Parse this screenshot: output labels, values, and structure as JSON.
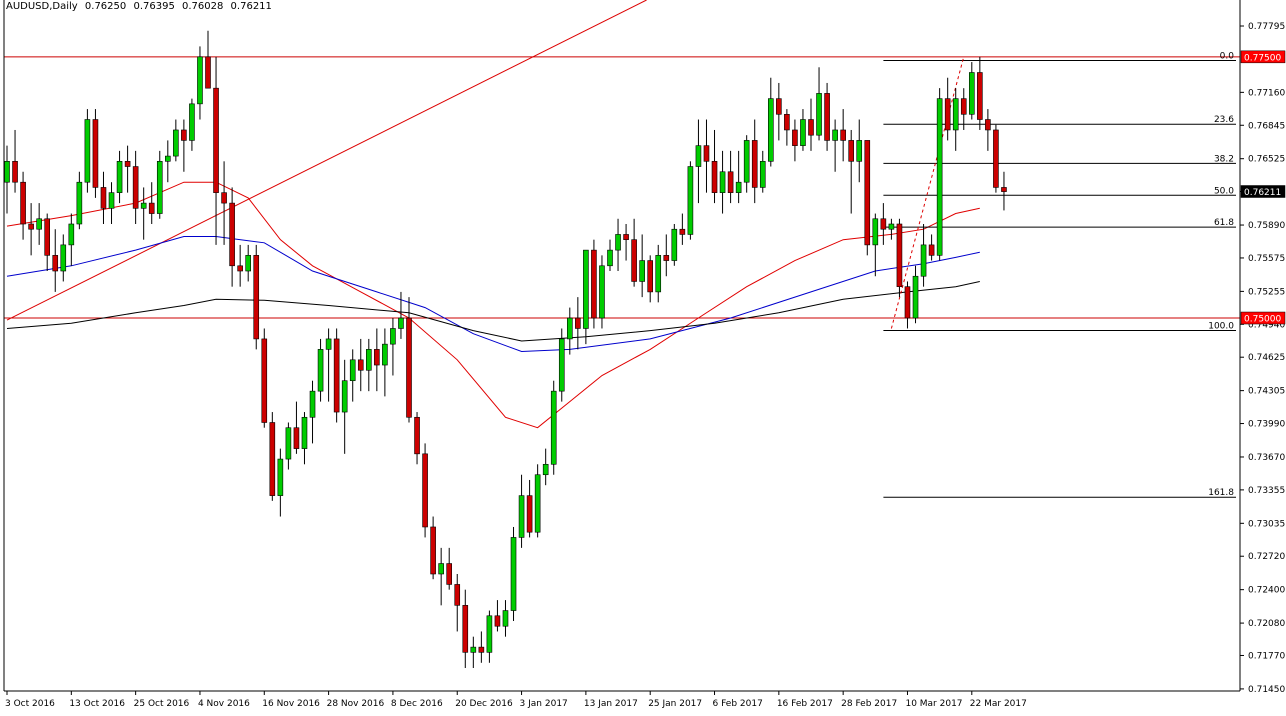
{
  "header": {
    "symbol": "AUDUSD,Daily",
    "open": "0.76250",
    "high": "0.76395",
    "low": "0.76028",
    "close": "0.76211"
  },
  "colors": {
    "bull": "#00cc00",
    "bear": "#cc0000",
    "ma_fast": "#e00000",
    "ma_mid": "#0000cc",
    "ma_slow": "#000000",
    "hline": "#cc0000",
    "trendline": "#dd0000",
    "price_tag_bg": "#ff0000"
  },
  "chart_data": {
    "type": "candlestick",
    "symbol": "AUDUSD",
    "timeframe": "Daily",
    "ylim": [
      0.7143,
      0.7791
    ],
    "y_ticks": [
      "0.77795",
      "0.77160",
      "0.76845",
      "0.76525",
      "0.76211",
      "0.75890",
      "0.75575",
      "0.75255",
      "0.74940",
      "0.74625",
      "0.74305",
      "0.73990",
      "0.73670",
      "0.73355",
      "0.73035",
      "0.72720",
      "0.72400",
      "0.72080",
      "0.71770",
      "0.71450"
    ],
    "x_labels": [
      {
        "i": 0,
        "label": "3 Oct 2016"
      },
      {
        "i": 8,
        "label": "13 Oct 2016"
      },
      {
        "i": 16,
        "label": "25 Oct 2016"
      },
      {
        "i": 24,
        "label": "4 Nov 2016"
      },
      {
        "i": 32,
        "label": "16 Nov 2016"
      },
      {
        "i": 40,
        "label": "28 Nov 2016"
      },
      {
        "i": 48,
        "label": "8 Dec 2016"
      },
      {
        "i": 56,
        "label": "20 Dec 2016"
      },
      {
        "i": 64,
        "label": "3 Jan 2017"
      },
      {
        "i": 72,
        "label": "13 Jan 2017"
      },
      {
        "i": 80,
        "label": "25 Jan 2017"
      },
      {
        "i": 88,
        "label": "6 Feb 2017"
      },
      {
        "i": 96,
        "label": "16 Feb 2017"
      },
      {
        "i": 104,
        "label": "28 Feb 2017"
      },
      {
        "i": 112,
        "label": "10 Mar 2017"
      },
      {
        "i": 120,
        "label": "22 Mar 2017"
      }
    ],
    "candles": [
      [
        0.763,
        0.7665,
        0.76,
        0.765
      ],
      [
        0.765,
        0.768,
        0.762,
        0.763
      ],
      [
        0.763,
        0.764,
        0.7575,
        0.759
      ],
      [
        0.759,
        0.761,
        0.756,
        0.7585
      ],
      [
        0.7585,
        0.761,
        0.757,
        0.7595
      ],
      [
        0.7595,
        0.76,
        0.7545,
        0.756
      ],
      [
        0.756,
        0.7585,
        0.7525,
        0.7545
      ],
      [
        0.7545,
        0.758,
        0.7535,
        0.757
      ],
      [
        0.757,
        0.76,
        0.755,
        0.759
      ],
      [
        0.759,
        0.764,
        0.7585,
        0.763
      ],
      [
        0.763,
        0.77,
        0.762,
        0.769
      ],
      [
        0.769,
        0.77,
        0.7615,
        0.7625
      ],
      [
        0.7625,
        0.764,
        0.759,
        0.7605
      ],
      [
        0.7605,
        0.763,
        0.759,
        0.762
      ],
      [
        0.762,
        0.766,
        0.761,
        0.765
      ],
      [
        0.765,
        0.7665,
        0.762,
        0.7645
      ],
      [
        0.7645,
        0.766,
        0.759,
        0.7605
      ],
      [
        0.7605,
        0.7625,
        0.7575,
        0.761
      ],
      [
        0.761,
        0.763,
        0.759,
        0.76
      ],
      [
        0.76,
        0.766,
        0.7595,
        0.765
      ],
      [
        0.765,
        0.767,
        0.763,
        0.7655
      ],
      [
        0.7655,
        0.769,
        0.765,
        0.768
      ],
      [
        0.768,
        0.769,
        0.764,
        0.767
      ],
      [
        0.767,
        0.771,
        0.766,
        0.7705
      ],
      [
        0.7705,
        0.776,
        0.769,
        0.775
      ],
      [
        0.775,
        0.7775,
        0.772,
        0.772
      ],
      [
        0.772,
        0.775,
        0.757,
        0.762
      ],
      [
        0.762,
        0.765,
        0.757,
        0.761
      ],
      [
        0.761,
        0.7625,
        0.753,
        0.755
      ],
      [
        0.755,
        0.757,
        0.753,
        0.7545
      ],
      [
        0.7545,
        0.757,
        0.7535,
        0.756
      ],
      [
        0.756,
        0.757,
        0.747,
        0.748
      ],
      [
        0.748,
        0.749,
        0.7395,
        0.74
      ],
      [
        0.74,
        0.741,
        0.7325,
        0.733
      ],
      [
        0.733,
        0.7375,
        0.731,
        0.7365
      ],
      [
        0.7365,
        0.74,
        0.7355,
        0.7395
      ],
      [
        0.7395,
        0.742,
        0.737,
        0.7375
      ],
      [
        0.7375,
        0.741,
        0.736,
        0.7405
      ],
      [
        0.7405,
        0.744,
        0.738,
        0.743
      ],
      [
        0.743,
        0.748,
        0.742,
        0.747
      ],
      [
        0.747,
        0.749,
        0.742,
        0.748
      ],
      [
        0.748,
        0.749,
        0.74,
        0.741
      ],
      [
        0.741,
        0.746,
        0.737,
        0.744
      ],
      [
        0.744,
        0.747,
        0.742,
        0.746
      ],
      [
        0.746,
        0.748,
        0.743,
        0.745
      ],
      [
        0.745,
        0.748,
        0.743,
        0.747
      ],
      [
        0.747,
        0.749,
        0.743,
        0.7455
      ],
      [
        0.7455,
        0.749,
        0.7425,
        0.7475
      ],
      [
        0.7475,
        0.75,
        0.7445,
        0.749
      ],
      [
        0.749,
        0.7525,
        0.748,
        0.75
      ],
      [
        0.75,
        0.752,
        0.74,
        0.7405
      ],
      [
        0.7405,
        0.741,
        0.736,
        0.737
      ],
      [
        0.737,
        0.738,
        0.729,
        0.73
      ],
      [
        0.73,
        0.731,
        0.725,
        0.7255
      ],
      [
        0.7255,
        0.728,
        0.7225,
        0.7265
      ],
      [
        0.7265,
        0.728,
        0.724,
        0.7245
      ],
      [
        0.7245,
        0.7255,
        0.72,
        0.7225
      ],
      [
        0.7225,
        0.724,
        0.7165,
        0.718
      ],
      [
        0.718,
        0.7195,
        0.7165,
        0.7185
      ],
      [
        0.7185,
        0.72,
        0.717,
        0.718
      ],
      [
        0.718,
        0.722,
        0.717,
        0.7215
      ],
      [
        0.7215,
        0.723,
        0.72,
        0.7205
      ],
      [
        0.7205,
        0.723,
        0.7195,
        0.722
      ],
      [
        0.722,
        0.73,
        0.721,
        0.729
      ],
      [
        0.729,
        0.735,
        0.728,
        0.733
      ],
      [
        0.733,
        0.7345,
        0.729,
        0.7295
      ],
      [
        0.7295,
        0.736,
        0.729,
        0.735
      ],
      [
        0.735,
        0.7375,
        0.734,
        0.736
      ],
      [
        0.736,
        0.744,
        0.735,
        0.743
      ],
      [
        0.743,
        0.749,
        0.742,
        0.748
      ],
      [
        0.748,
        0.751,
        0.7465,
        0.75
      ],
      [
        0.75,
        0.752,
        0.747,
        0.749
      ],
      [
        0.749,
        0.756,
        0.7475,
        0.7565
      ],
      [
        0.7565,
        0.7575,
        0.749,
        0.75
      ],
      [
        0.75,
        0.756,
        0.749,
        0.755
      ],
      [
        0.755,
        0.7575,
        0.7545,
        0.7565
      ],
      [
        0.7565,
        0.7595,
        0.7545,
        0.758
      ],
      [
        0.758,
        0.759,
        0.7555,
        0.7575
      ],
      [
        0.7575,
        0.7595,
        0.753,
        0.7535
      ],
      [
        0.7535,
        0.758,
        0.752,
        0.7555
      ],
      [
        0.7555,
        0.756,
        0.7515,
        0.7525
      ],
      [
        0.7525,
        0.757,
        0.7515,
        0.756
      ],
      [
        0.756,
        0.758,
        0.754,
        0.7555
      ],
      [
        0.7555,
        0.759,
        0.755,
        0.7585
      ],
      [
        0.7585,
        0.76,
        0.757,
        0.758
      ],
      [
        0.758,
        0.765,
        0.7575,
        0.7645
      ],
      [
        0.7645,
        0.769,
        0.761,
        0.7665
      ],
      [
        0.7665,
        0.769,
        0.762,
        0.765
      ],
      [
        0.765,
        0.768,
        0.761,
        0.762
      ],
      [
        0.762,
        0.766,
        0.76,
        0.764
      ],
      [
        0.764,
        0.766,
        0.761,
        0.762
      ],
      [
        0.762,
        0.766,
        0.761,
        0.763
      ],
      [
        0.763,
        0.7675,
        0.762,
        0.767
      ],
      [
        0.767,
        0.769,
        0.761,
        0.7625
      ],
      [
        0.7625,
        0.766,
        0.762,
        0.765
      ],
      [
        0.765,
        0.773,
        0.7645,
        0.771
      ],
      [
        0.771,
        0.7725,
        0.767,
        0.7695
      ],
      [
        0.7695,
        0.77,
        0.7665,
        0.768
      ],
      [
        0.768,
        0.769,
        0.765,
        0.7665
      ],
      [
        0.7665,
        0.77,
        0.766,
        0.769
      ],
      [
        0.769,
        0.771,
        0.766,
        0.7675
      ],
      [
        0.7675,
        0.774,
        0.767,
        0.7715
      ],
      [
        0.7715,
        0.7725,
        0.766,
        0.767
      ],
      [
        0.767,
        0.769,
        0.764,
        0.768
      ],
      [
        0.768,
        0.77,
        0.765,
        0.767
      ],
      [
        0.767,
        0.768,
        0.76,
        0.765
      ],
      [
        0.765,
        0.769,
        0.763,
        0.767
      ],
      [
        0.767,
        0.767,
        0.756,
        0.757
      ],
      [
        0.757,
        0.76,
        0.754,
        0.7595
      ],
      [
        0.7595,
        0.761,
        0.757,
        0.7585
      ],
      [
        0.7585,
        0.7595,
        0.7575,
        0.759
      ],
      [
        0.759,
        0.7595,
        0.752,
        0.753
      ],
      [
        0.753,
        0.7535,
        0.749,
        0.75
      ],
      [
        0.75,
        0.755,
        0.7495,
        0.754
      ],
      [
        0.754,
        0.759,
        0.753,
        0.757
      ],
      [
        0.757,
        0.758,
        0.7555,
        0.756
      ],
      [
        0.756,
        0.772,
        0.7555,
        0.771
      ],
      [
        0.771,
        0.773,
        0.767,
        0.768
      ],
      [
        0.768,
        0.772,
        0.766,
        0.771
      ],
      [
        0.771,
        0.772,
        0.768,
        0.7695
      ],
      [
        0.7695,
        0.7745,
        0.769,
        0.7735
      ],
      [
        0.7735,
        0.775,
        0.768,
        0.769
      ],
      [
        0.769,
        0.77,
        0.766,
        0.768
      ],
      [
        0.768,
        0.7685,
        0.762,
        0.7625
      ],
      [
        0.7625,
        0.764,
        0.7603,
        0.7621
      ]
    ],
    "ma_series": [
      {
        "color": "ma_fast",
        "points": [
          [
            0,
            0.7588
          ],
          [
            8,
            0.7598
          ],
          [
            16,
            0.761
          ],
          [
            22,
            0.763
          ],
          [
            26,
            0.763
          ],
          [
            30,
            0.7615
          ],
          [
            34,
            0.7575
          ],
          [
            38,
            0.755
          ],
          [
            44,
            0.7525
          ],
          [
            50,
            0.75
          ],
          [
            56,
            0.746
          ],
          [
            62,
            0.7405
          ],
          [
            66,
            0.7395
          ],
          [
            70,
            0.742
          ],
          [
            74,
            0.7445
          ],
          [
            80,
            0.747
          ],
          [
            86,
            0.75
          ],
          [
            92,
            0.753
          ],
          [
            98,
            0.7555
          ],
          [
            104,
            0.7575
          ],
          [
            110,
            0.758
          ],
          [
            114,
            0.7585
          ],
          [
            118,
            0.76
          ],
          [
            121,
            0.7605
          ]
        ]
      },
      {
        "color": "ma_mid",
        "points": [
          [
            0,
            0.754
          ],
          [
            8,
            0.755
          ],
          [
            16,
            0.7565
          ],
          [
            22,
            0.7578
          ],
          [
            26,
            0.7578
          ],
          [
            32,
            0.7572
          ],
          [
            38,
            0.7545
          ],
          [
            46,
            0.7525
          ],
          [
            52,
            0.751
          ],
          [
            58,
            0.7485
          ],
          [
            64,
            0.7468
          ],
          [
            70,
            0.747
          ],
          [
            80,
            0.748
          ],
          [
            90,
            0.75
          ],
          [
            100,
            0.7525
          ],
          [
            108,
            0.7545
          ],
          [
            114,
            0.7552
          ],
          [
            118,
            0.7558
          ],
          [
            121,
            0.7563
          ]
        ]
      },
      {
        "color": "ma_slow",
        "points": [
          [
            0,
            0.749
          ],
          [
            8,
            0.7495
          ],
          [
            16,
            0.7505
          ],
          [
            22,
            0.7512
          ],
          [
            26,
            0.7518
          ],
          [
            32,
            0.7517
          ],
          [
            40,
            0.7512
          ],
          [
            50,
            0.7505
          ],
          [
            58,
            0.7488
          ],
          [
            64,
            0.7478
          ],
          [
            72,
            0.7482
          ],
          [
            80,
            0.7488
          ],
          [
            88,
            0.7495
          ],
          [
            96,
            0.7505
          ],
          [
            104,
            0.7518
          ],
          [
            112,
            0.7525
          ],
          [
            118,
            0.753
          ],
          [
            121,
            0.7535
          ]
        ]
      }
    ],
    "horizontal_levels": [
      {
        "price": 0.775,
        "label": "0.77500"
      },
      {
        "price": 0.75,
        "label": "0.75000"
      }
    ],
    "current_price": {
      "price": 0.76211,
      "label": "0.76211"
    },
    "trendline": {
      "from": [
        0,
        0.7498
      ],
      "to": [
        81,
        0.781
      ]
    },
    "fibonacci": {
      "from_index": 110,
      "to_index": 119,
      "high": 0.775,
      "low": 0.749,
      "levels": [
        {
          "ratio": 0.0,
          "label": "0.0",
          "price": 0.77465
        },
        {
          "ratio": 0.236,
          "label": "23.6",
          "price": 0.76855
        },
        {
          "ratio": 0.382,
          "label": "38.2",
          "price": 0.7648
        },
        {
          "ratio": 0.5,
          "label": "50.0",
          "price": 0.76175
        },
        {
          "ratio": 0.618,
          "label": "61.8",
          "price": 0.7587
        },
        {
          "ratio": 1.0,
          "label": "100.0",
          "price": 0.7488
        },
        {
          "ratio": 1.618,
          "label": "161.8",
          "price": 0.73285
        }
      ]
    }
  }
}
